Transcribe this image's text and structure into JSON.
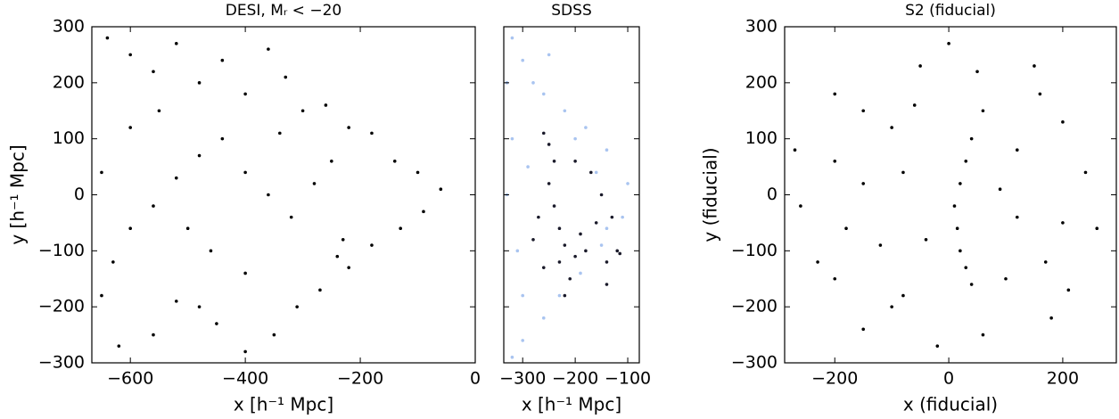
{
  "chart_data": [
    {
      "type": "scatter",
      "title": "DESI, Mᵣ < −20",
      "xlabel": "x [h⁻¹ Mpc]",
      "ylabel": "y [h⁻¹ Mpc]",
      "xlim": [
        -667,
        0
      ],
      "ylim": [
        -300,
        300
      ],
      "xticks": [
        {
          "value": -600,
          "label": "−600"
        },
        {
          "value": -400,
          "label": "−400"
        },
        {
          "value": -200,
          "label": "−200"
        },
        0
      ],
      "yticks": [
        {
          "value": -300,
          "label": "−300"
        },
        {
          "value": -200,
          "label": "−200"
        },
        {
          "value": -100,
          "label": "−100"
        },
        0,
        100,
        200,
        300
      ],
      "series": [
        {
          "color": "#000000",
          "x": [
            -640,
            -600,
            -560,
            -520,
            -480,
            -440,
            -400,
            -360,
            -330,
            -300,
            -260,
            -220,
            -180,
            -140,
            -100,
            -60,
            -90,
            -130,
            -180,
            -230,
            -240,
            -220,
            -270,
            -310,
            -350,
            -400,
            -450,
            -480,
            -520,
            -560,
            -620,
            -650,
            -630,
            -600,
            -560,
            -520,
            -480,
            -440,
            -400,
            -360,
            -320,
            -280,
            -250,
            -340,
            -460,
            -400,
            -500,
            -600,
            -650,
            -550
          ],
          "y": [
            280,
            250,
            220,
            270,
            200,
            240,
            180,
            260,
            210,
            150,
            160,
            120,
            110,
            60,
            40,
            10,
            -30,
            -60,
            -90,
            -80,
            -110,
            -130,
            -170,
            -200,
            -250,
            -280,
            -230,
            -200,
            -190,
            -250,
            -270,
            -180,
            -120,
            -60,
            -20,
            30,
            70,
            100,
            40,
            0,
            -40,
            20,
            60,
            110,
            -100,
            -140,
            -60,
            120,
            40,
            150
          ]
        }
      ]
    },
    {
      "type": "scatter",
      "title": "SDSS",
      "xlabel": "x [h⁻¹ Mpc]",
      "xlim": [
        -336,
        -78
      ],
      "ylim": [
        -300,
        300
      ],
      "ytick_labels": false,
      "xticks": [
        {
          "value": -300,
          "label": "−300"
        },
        {
          "value": -200,
          "label": "−200"
        },
        {
          "value": -100,
          "label": "−100"
        }
      ],
      "yticks": [
        -300,
        -200,
        -100,
        0,
        100,
        200,
        300
      ],
      "series": [
        {
          "color": "#a9c4f0",
          "x": [
            -320,
            -300,
            -280,
            -260,
            -220,
            -180,
            -140,
            -100,
            -110,
            -150,
            -190,
            -230,
            -260,
            -300,
            -320,
            -330,
            -310,
            -320,
            -290,
            -250,
            -200,
            -160,
            -140,
            -300,
            -330
          ],
          "y": [
            280,
            240,
            200,
            180,
            150,
            120,
            80,
            20,
            -40,
            -90,
            -140,
            -180,
            -220,
            -260,
            -290,
            0,
            -100,
            100,
            50,
            250,
            100,
            40,
            -60,
            -180,
            200
          ]
        },
        {
          "color": "#1a1a2a",
          "x": [
            -260,
            -250,
            -240,
            -250,
            -240,
            -230,
            -220,
            -230,
            -210,
            -220,
            -200,
            -180,
            -190,
            -160,
            -130,
            -120,
            -115,
            -140,
            -170,
            -200,
            -270,
            -280,
            -260,
            -150,
            -140
          ],
          "y": [
            110,
            90,
            60,
            20,
            -20,
            -60,
            -90,
            -120,
            -150,
            -180,
            -110,
            -100,
            -70,
            -50,
            -40,
            -100,
            -105,
            -120,
            40,
            60,
            -40,
            -80,
            -130,
            0,
            -160
          ]
        }
      ]
    },
    {
      "type": "scatter",
      "title": "S2 (fiducial)",
      "xlabel": "x (fiducial)",
      "ylabel": "y (fiducial)",
      "xlim": [
        -288,
        294
      ],
      "ylim": [
        -300,
        300
      ],
      "xticks": [
        {
          "value": -200,
          "label": "−200"
        },
        0,
        200
      ],
      "yticks": [
        {
          "value": -300,
          "label": "−300"
        },
        {
          "value": -200,
          "label": "−200"
        },
        {
          "value": -100,
          "label": "−100"
        },
        0,
        100,
        200,
        300
      ],
      "series": [
        {
          "color": "#000000",
          "x": [
            20,
            30,
            40,
            15,
            10,
            20,
            30,
            40,
            -100,
            -80,
            -150,
            -200,
            -200,
            -150,
            -100,
            60,
            150,
            200,
            240,
            200,
            210,
            180,
            100,
            60,
            -20,
            -150,
            -230,
            -260,
            -270,
            -200,
            -50,
            50,
            120,
            -80,
            -40,
            120,
            170,
            -180,
            90,
            -120,
            0,
            260,
            -60,
            160
          ],
          "y": [
            -100,
            -130,
            -160,
            -60,
            -20,
            20,
            60,
            100,
            -200,
            -180,
            20,
            60,
            180,
            150,
            120,
            150,
            230,
            130,
            40,
            -50,
            -170,
            -220,
            -150,
            -250,
            -270,
            -240,
            -120,
            -20,
            80,
            -150,
            230,
            220,
            80,
            40,
            -80,
            -40,
            -120,
            -60,
            10,
            -90,
            270,
            -60,
            160,
            180
          ]
        }
      ]
    }
  ]
}
